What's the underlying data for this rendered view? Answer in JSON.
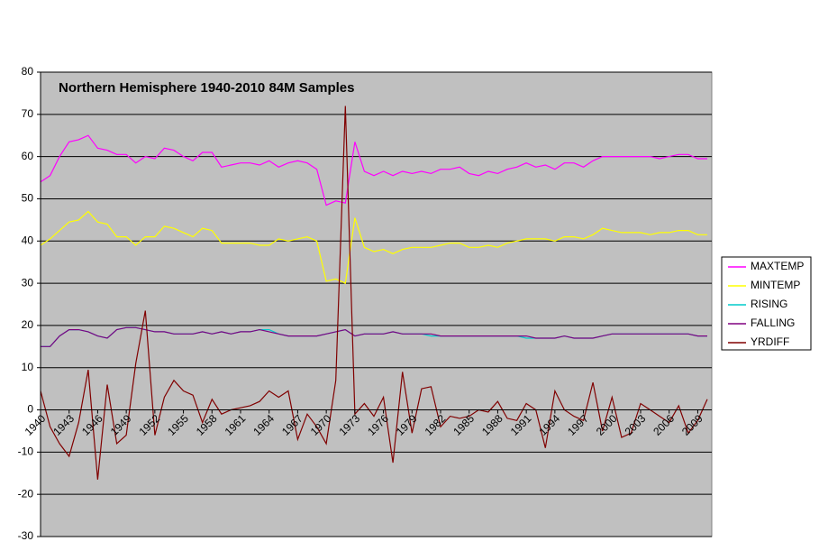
{
  "chart_data": {
    "type": "line",
    "title": "Northern Hemisphere 1940-2010 84M Samples",
    "x": [
      1940,
      1941,
      1942,
      1943,
      1944,
      1945,
      1946,
      1947,
      1948,
      1949,
      1950,
      1951,
      1952,
      1953,
      1954,
      1955,
      1956,
      1957,
      1958,
      1959,
      1960,
      1961,
      1962,
      1963,
      1964,
      1965,
      1966,
      1967,
      1968,
      1969,
      1970,
      1971,
      1972,
      1973,
      1974,
      1975,
      1976,
      1977,
      1978,
      1979,
      1980,
      1981,
      1982,
      1983,
      1984,
      1985,
      1986,
      1987,
      1988,
      1989,
      1990,
      1991,
      1992,
      1993,
      1994,
      1995,
      1996,
      1997,
      1998,
      1999,
      2000,
      2001,
      2002,
      2003,
      2004,
      2005,
      2006,
      2007,
      2008,
      2009,
      2010
    ],
    "xlim": [
      1940,
      2010
    ],
    "xticks": [
      1940,
      1943,
      1946,
      1949,
      1952,
      1955,
      1958,
      1961,
      1964,
      1967,
      1970,
      1973,
      1976,
      1979,
      1982,
      1985,
      1988,
      1991,
      1994,
      1997,
      2000,
      2003,
      2006,
      2009
    ],
    "ylim": [
      -30,
      80
    ],
    "yticks": [
      -30,
      -20,
      -10,
      0,
      10,
      20,
      30,
      40,
      50,
      60,
      70,
      80
    ],
    "grid": true,
    "legend": "right",
    "series": [
      {
        "name": "MAXTEMP",
        "color": "#ff00ff",
        "values": [
          54,
          55.5,
          60,
          63.5,
          64,
          65,
          62,
          61.5,
          60.5,
          60.5,
          58.5,
          60,
          59.5,
          62,
          61.5,
          60,
          59,
          61,
          61,
          57.5,
          58,
          58.5,
          58.5,
          58,
          59,
          57.5,
          58.5,
          59,
          58.5,
          57,
          48.5,
          49.5,
          49,
          63.5,
          56.5,
          55.5,
          56.5,
          55.5,
          56.5,
          56,
          56.5,
          56,
          57,
          57,
          57.5,
          56,
          55.5,
          56.5,
          56,
          57,
          57.5,
          58.5,
          57.5,
          58,
          57,
          58.5,
          58.5,
          57.5,
          59,
          60,
          60,
          60,
          60,
          60,
          60,
          59.5,
          60,
          60.5,
          60.5,
          59.5,
          59.5
        ]
      },
      {
        "name": "MINTEMP",
        "color": "#ffff00",
        "values": [
          39,
          40.5,
          42.5,
          44.5,
          45,
          47,
          44.5,
          44,
          41,
          41,
          39,
          41,
          41,
          43.5,
          43,
          42,
          41,
          43,
          42.5,
          39.5,
          39.5,
          39.5,
          39.5,
          39,
          39,
          40.5,
          40,
          40.5,
          41,
          40,
          30.5,
          31,
          30,
          45.5,
          38.5,
          37.5,
          38,
          37,
          38,
          38.5,
          38.5,
          38.5,
          39,
          39.5,
          39.5,
          38.5,
          38.5,
          39,
          38.5,
          39.5,
          40,
          40.5,
          40.5,
          40.5,
          40,
          41,
          41,
          40.5,
          41.5,
          43,
          42.5,
          42,
          42,
          42,
          41.5,
          42,
          42,
          42.5,
          42.5,
          41.5,
          41.5
        ]
      },
      {
        "name": "RISING",
        "color": "#00cccc",
        "values": [
          15,
          15,
          17.5,
          19,
          19,
          18.5,
          17.5,
          17,
          19,
          19.5,
          19.5,
          19,
          18.5,
          18.5,
          18,
          18,
          18,
          18.5,
          18,
          18.5,
          18,
          18.5,
          18.5,
          19,
          19,
          18,
          17.5,
          17.5,
          17.5,
          17.5,
          18,
          18.5,
          19,
          17.5,
          18,
          18,
          18,
          18.5,
          18,
          18,
          18,
          17.5,
          17.5,
          17.5,
          17.5,
          17.5,
          17.5,
          17.5,
          17.5,
          17.5,
          17.5,
          17,
          17,
          17,
          17,
          17.5,
          17,
          17,
          17,
          17.5,
          18,
          18,
          18,
          18,
          18,
          18,
          18,
          18,
          18,
          17.5,
          17.5
        ]
      },
      {
        "name": "FALLING",
        "color": "#800080",
        "values": [
          15,
          15,
          17.5,
          19,
          19,
          18.5,
          17.5,
          17,
          19,
          19.5,
          19.5,
          19,
          18.5,
          18.5,
          18,
          18,
          18,
          18.5,
          18,
          18.5,
          18,
          18.5,
          18.5,
          19,
          18.5,
          18,
          17.5,
          17.5,
          17.5,
          17.5,
          18,
          18.5,
          19,
          17.5,
          18,
          18,
          18,
          18.5,
          18,
          18,
          18,
          18,
          17.5,
          17.5,
          17.5,
          17.5,
          17.5,
          17.5,
          17.5,
          17.5,
          17.5,
          17.5,
          17,
          17,
          17,
          17.5,
          17,
          17,
          17,
          17.5,
          18,
          18,
          18,
          18,
          18,
          18,
          18,
          18,
          18,
          17.5,
          17.5
        ]
      },
      {
        "name": "YRDIFF",
        "color": "#800000",
        "values": [
          4.5,
          -4,
          -8,
          -11,
          -3,
          9.5,
          -16.5,
          6,
          -8,
          -6,
          11,
          23.5,
          -6,
          3,
          7,
          4.5,
          3.5,
          -3,
          2.5,
          -1,
          0,
          0.5,
          1,
          2,
          4.5,
          3,
          4.5,
          -7,
          -1,
          -4,
          -8,
          7,
          72,
          -1,
          1.5,
          -1.5,
          3,
          -12.5,
          9,
          -5.5,
          5,
          5.5,
          -4,
          -1.5,
          -2,
          -1.5,
          0,
          -0.5,
          2,
          -2,
          -2.5,
          1.5,
          0,
          -9,
          4.5,
          0,
          -1.5,
          -2.5,
          6.5,
          -5,
          3,
          -6.5,
          -5.5,
          1.5,
          0,
          -1.5,
          -3,
          1,
          -5.5,
          -2.5,
          2.5
        ]
      }
    ]
  }
}
